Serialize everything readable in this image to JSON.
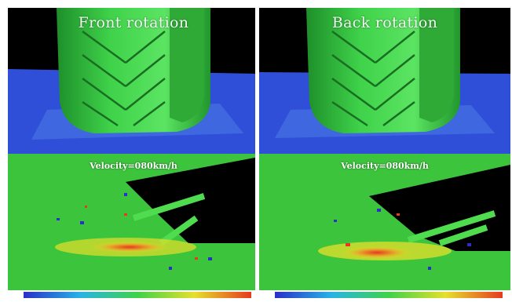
{
  "panels": [
    {
      "title": "Front rotation",
      "velocity_label": "Velocity=080km/h"
    },
    {
      "title": "Back rotation",
      "velocity_label": "Velocity=080km/h"
    }
  ],
  "colors": {
    "tire": "#3fd24a",
    "ground_blue": "#2f4fd8",
    "field_green": "#3cc43c",
    "background": "#000000"
  },
  "colorbar": [
    "#2b2fc8",
    "#29b3e6",
    "#3fd24a",
    "#e6e02a",
    "#e63a1f"
  ]
}
